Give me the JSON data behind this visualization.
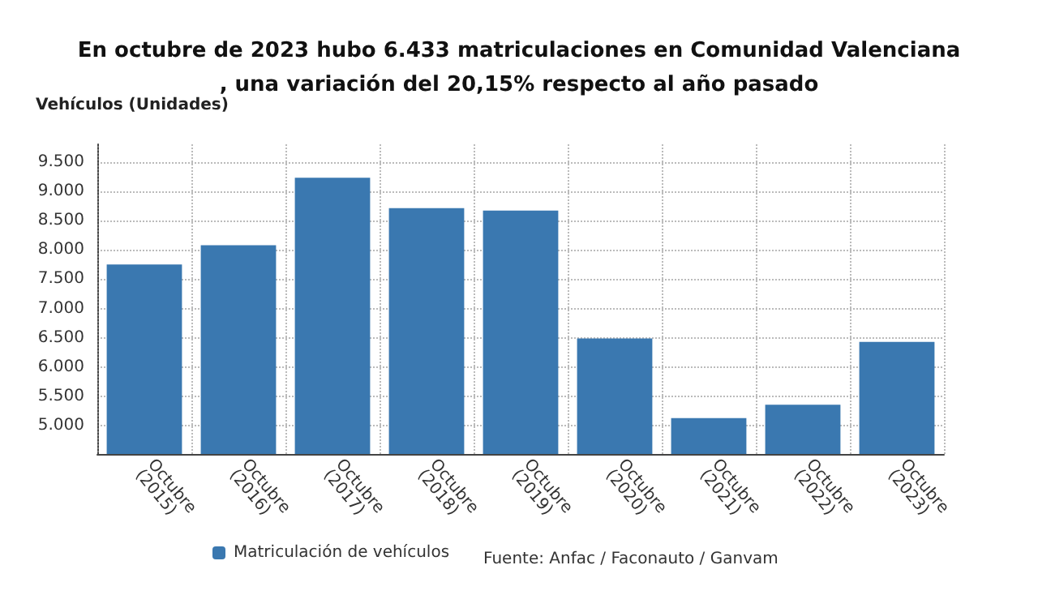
{
  "chart_data": {
    "type": "bar",
    "title": "En octubre de 2023 hubo 6.433 matriculaciones en Comunidad Valenciana, una variación del 20,15% respecto al año pasado",
    "ylabel": "Vehículos (Unidades)",
    "categories": [
      "Octubre (2015)",
      "Octubre (2016)",
      "Octubre (2017)",
      "Octubre (2018)",
      "Octubre (2019)",
      "Octubre (2020)",
      "Octubre (2021)",
      "Octubre (2022)",
      "Octubre (2023)"
    ],
    "series": [
      {
        "name": "Matriculación de vehículos",
        "color": "#3a78b0",
        "values": [
          7750,
          8080,
          9230,
          8710,
          8670,
          6490,
          5130,
          5360,
          6430
        ]
      }
    ],
    "ylim": [
      4520,
      9800
    ],
    "yticks": [
      {
        "value": 5000,
        "label": "5.000"
      },
      {
        "value": 5500,
        "label": "5.500"
      },
      {
        "value": 6000,
        "label": "6.000"
      },
      {
        "value": 6500,
        "label": "6.500"
      },
      {
        "value": 7000,
        "label": "7.000"
      },
      {
        "value": 7500,
        "label": "7.500"
      },
      {
        "value": 8000,
        "label": "8.000"
      },
      {
        "value": 8500,
        "label": "8.500"
      },
      {
        "value": 9000,
        "label": "9.000"
      },
      {
        "value": 9500,
        "label": "9.500"
      }
    ],
    "grid": true,
    "legend": "bottom",
    "annotations": [
      "Fuente: Anfac / Faconauto / Ganvam"
    ]
  }
}
